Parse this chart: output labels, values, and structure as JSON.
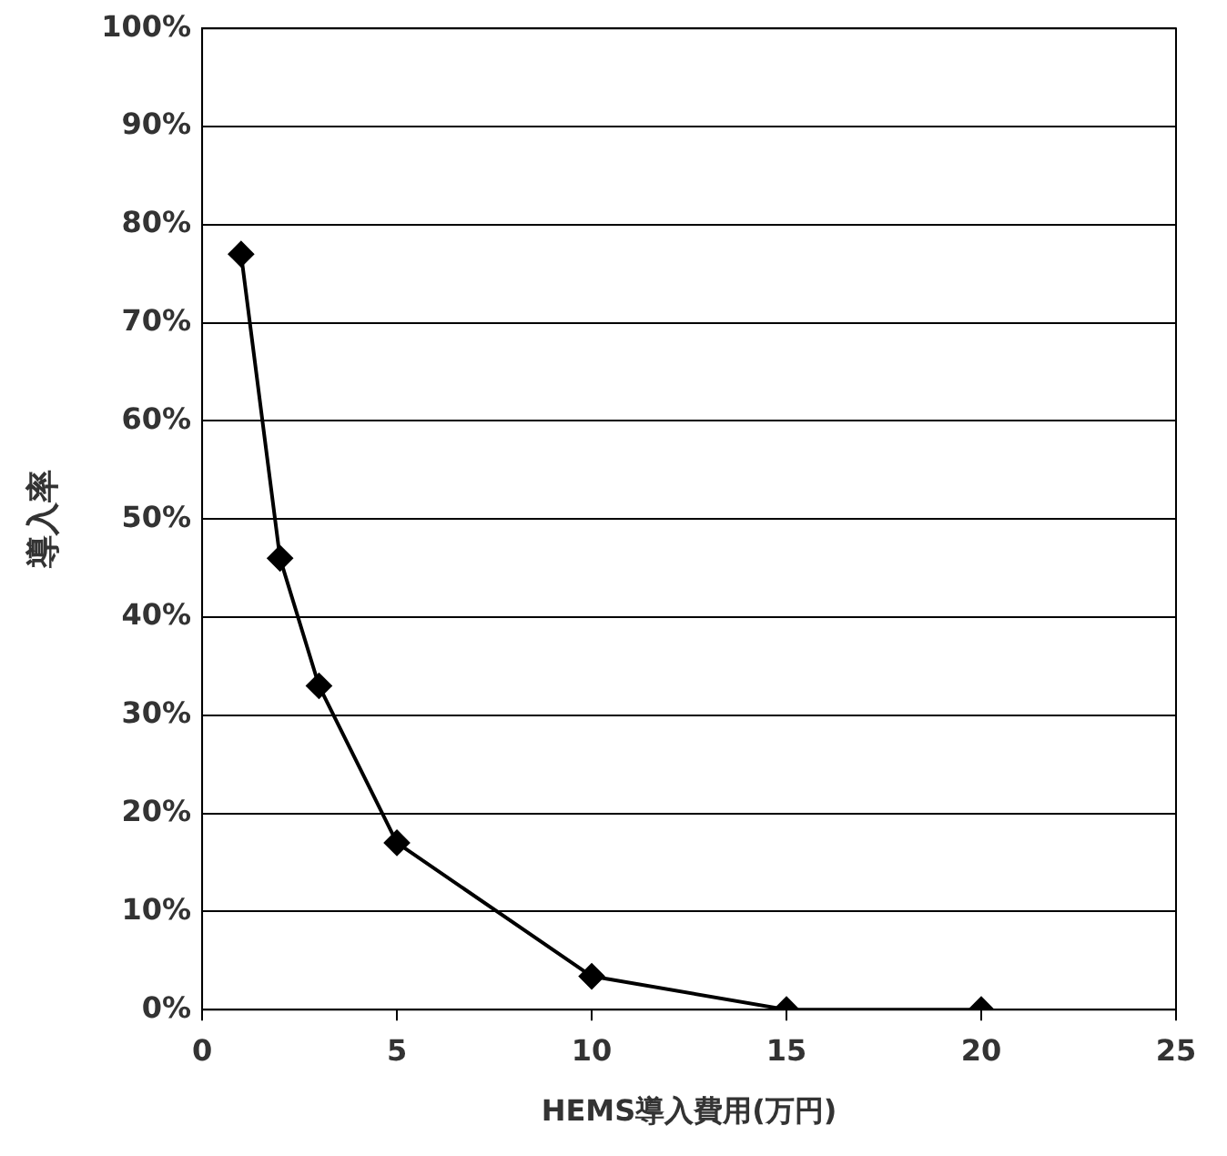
{
  "chart_data": {
    "type": "line",
    "xlabel": "HEMS導入費用(万円)",
    "ylabel": "導入率",
    "x": [
      1,
      2,
      3,
      5,
      10,
      15,
      20
    ],
    "series": [
      {
        "color": "#000000",
        "values": [
          77,
          46,
          33,
          17,
          3.4,
          0,
          0
        ]
      }
    ],
    "xlim": [
      0,
      25
    ],
    "xticks": [
      0,
      5,
      10,
      15,
      20,
      25
    ],
    "ylim": [
      0,
      100
    ],
    "yticks": [
      {
        "value": 0,
        "label": "0%"
      },
      {
        "value": 10,
        "label": "10%"
      },
      {
        "value": 20,
        "label": "20%"
      },
      {
        "value": 30,
        "label": "30%"
      },
      {
        "value": 40,
        "label": "40%"
      },
      {
        "value": 50,
        "label": "50%"
      },
      {
        "value": 60,
        "label": "60%"
      },
      {
        "value": 70,
        "label": "70%"
      },
      {
        "value": 80,
        "label": "80%"
      },
      {
        "value": 90,
        "label": "90%"
      },
      {
        "value": 100,
        "label": "100%"
      }
    ],
    "grid": "y",
    "legend": false,
    "marker": "diamond",
    "line_style": "solid"
  }
}
